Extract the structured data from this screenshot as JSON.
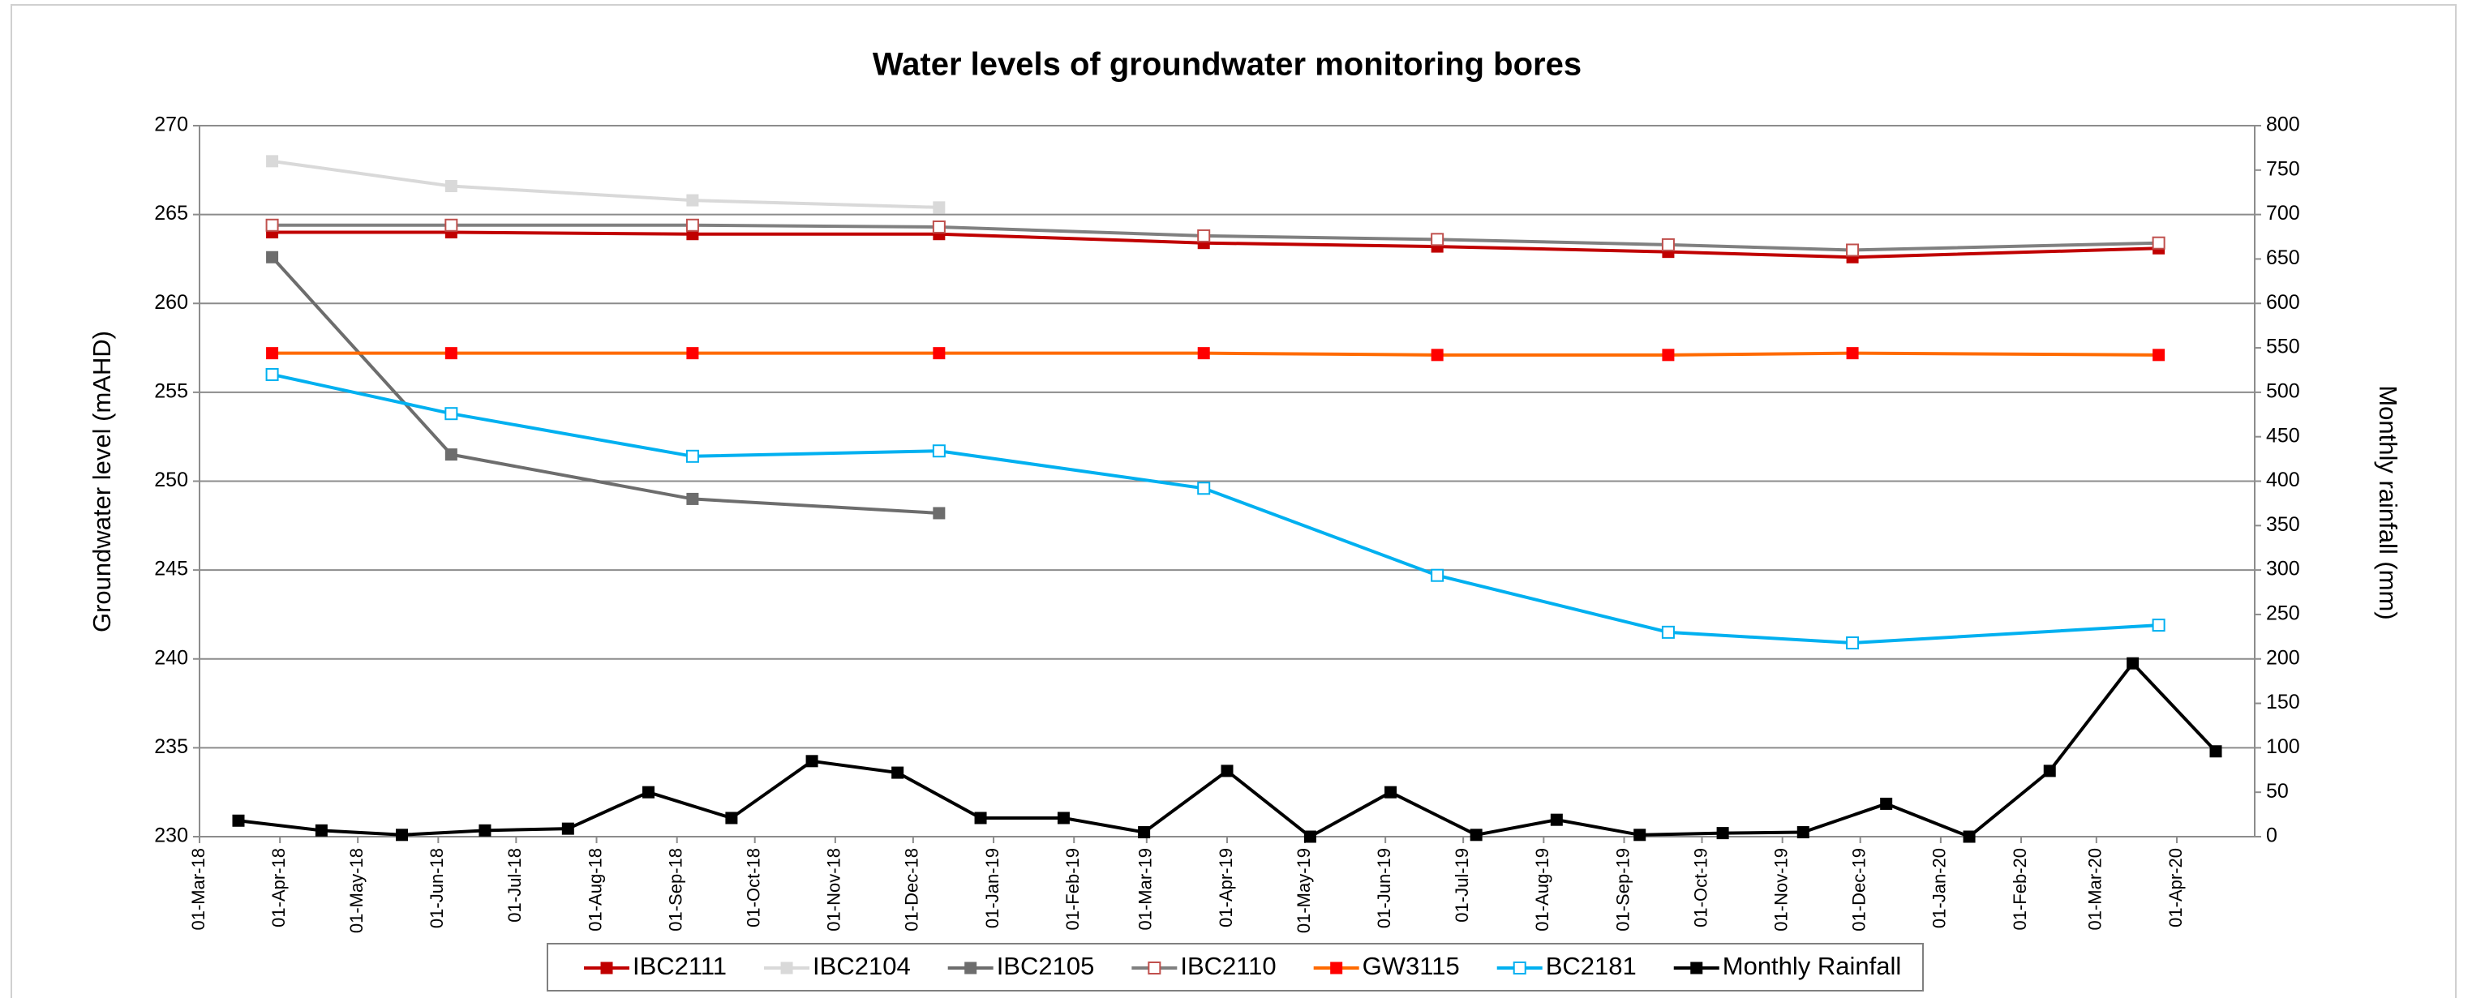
{
  "chart_data": {
    "type": "line",
    "title": "Water levels of groundwater monitoring bores",
    "y_label": "Groundwater level (mAHD)",
    "y2_label": "Monthly rainfall (mm)",
    "xlim": [
      "2018-03-01",
      "2020-05-01"
    ],
    "xticks": [
      {
        "value": "2018-03-01",
        "label": "01-Mar-18"
      },
      {
        "value": "2018-04-01",
        "label": "01-Apr-18"
      },
      {
        "value": "2018-05-01",
        "label": "01-May-18"
      },
      {
        "value": "2018-06-01",
        "label": "01-Jun-18"
      },
      {
        "value": "2018-07-01",
        "label": "01-Jul-18"
      },
      {
        "value": "2018-08-01",
        "label": "01-Aug-18"
      },
      {
        "value": "2018-09-01",
        "label": "01-Sep-18"
      },
      {
        "value": "2018-10-01",
        "label": "01-Oct-18"
      },
      {
        "value": "2018-11-01",
        "label": "01-Nov-18"
      },
      {
        "value": "2018-12-01",
        "label": "01-Dec-18"
      },
      {
        "value": "2019-01-01",
        "label": "01-Jan-19"
      },
      {
        "value": "2019-02-01",
        "label": "01-Feb-19"
      },
      {
        "value": "2019-03-01",
        "label": "01-Mar-19"
      },
      {
        "value": "2019-04-01",
        "label": "01-Apr-19"
      },
      {
        "value": "2019-05-01",
        "label": "01-May-19"
      },
      {
        "value": "2019-06-01",
        "label": "01-Jun-19"
      },
      {
        "value": "2019-07-01",
        "label": "01-Jul-19"
      },
      {
        "value": "2019-08-01",
        "label": "01-Aug-19"
      },
      {
        "value": "2019-09-01",
        "label": "01-Sep-19"
      },
      {
        "value": "2019-10-01",
        "label": "01-Oct-19"
      },
      {
        "value": "2019-11-01",
        "label": "01-Nov-19"
      },
      {
        "value": "2019-12-01",
        "label": "01-Dec-19"
      },
      {
        "value": "2020-01-01",
        "label": "01-Jan-20"
      },
      {
        "value": "2020-02-01",
        "label": "01-Feb-20"
      },
      {
        "value": "2020-03-01",
        "label": "01-Mar-20"
      },
      {
        "value": "2020-04-01",
        "label": "01-Apr-20"
      }
    ],
    "ylim": [
      230,
      270
    ],
    "yticks": [
      230,
      235,
      240,
      245,
      250,
      255,
      260,
      265,
      270
    ],
    "y2lim": [
      0,
      800
    ],
    "y2ticks": [
      0,
      50,
      100,
      150,
      200,
      250,
      300,
      350,
      400,
      450,
      500,
      550,
      600,
      650,
      700,
      750,
      800
    ],
    "grid": true,
    "legend": "bottom",
    "series": [
      {
        "name": "IBC2111",
        "color": "#c00000",
        "marker_color": "#c00000",
        "marker": "filled",
        "x": [
          "2018-03-29",
          "2018-06-06",
          "2018-09-07",
          "2018-12-11",
          "2019-03-23",
          "2019-06-21",
          "2019-09-18",
          "2019-11-28",
          "2020-03-25"
        ],
        "values": [
          264.0,
          264.0,
          263.9,
          263.9,
          263.4,
          263.2,
          262.9,
          262.6,
          263.1
        ]
      },
      {
        "name": "IBC2104",
        "color": "#d9d9d9",
        "marker_color": "#d9d9d9",
        "marker": "filled",
        "x": [
          "2018-03-29",
          "2018-06-06",
          "2018-09-07",
          "2018-12-11"
        ],
        "values": [
          268.0,
          266.6,
          265.8,
          265.4
        ]
      },
      {
        "name": "IBC2105",
        "color": "#6d6d6d",
        "marker_color": "#6d6d6d",
        "marker": "filled",
        "x": [
          "2018-03-29",
          "2018-06-06",
          "2018-09-07",
          "2018-12-11"
        ],
        "values": [
          262.6,
          251.5,
          249.0,
          248.2
        ]
      },
      {
        "name": "IBC2110",
        "color": "#808080",
        "marker_color": "#c0504d",
        "marker": "open",
        "x": [
          "2018-03-29",
          "2018-06-06",
          "2018-09-07",
          "2018-12-11",
          "2019-03-23",
          "2019-06-21",
          "2019-09-18",
          "2019-11-28",
          "2020-03-25"
        ],
        "values": [
          264.4,
          264.4,
          264.4,
          264.3,
          263.8,
          263.6,
          263.3,
          263.0,
          263.4
        ]
      },
      {
        "name": "GW3115",
        "color": "#ff6a00",
        "marker_color": "#ff0000",
        "marker": "filled",
        "x": [
          "2018-03-29",
          "2018-06-06",
          "2018-09-07",
          "2018-12-11",
          "2019-03-23",
          "2019-06-21",
          "2019-09-18",
          "2019-11-28",
          "2020-03-25"
        ],
        "values": [
          257.2,
          257.2,
          257.2,
          257.2,
          257.2,
          257.1,
          257.1,
          257.2,
          257.1
        ]
      },
      {
        "name": "BC2181",
        "color": "#00b0f0",
        "marker_color": "#00b0f0",
        "marker": "open",
        "x": [
          "2018-03-29",
          "2018-06-06",
          "2018-09-07",
          "2018-12-11",
          "2019-03-23",
          "2019-06-21",
          "2019-09-18",
          "2019-11-28",
          "2020-03-25"
        ],
        "values": [
          256.0,
          253.8,
          251.4,
          251.7,
          249.6,
          244.7,
          241.5,
          240.9,
          241.9
        ]
      },
      {
        "name": "Monthly Rainfall",
        "color": "#000000",
        "marker_color": "#000000",
        "marker": "filled",
        "axis": "y2",
        "x": [
          "2018-03-16",
          "2018-04-17",
          "2018-05-18",
          "2018-06-19",
          "2018-07-21",
          "2018-08-21",
          "2018-09-22",
          "2018-10-23",
          "2018-11-25",
          "2018-12-27",
          "2019-01-28",
          "2019-02-28",
          "2019-04-01",
          "2019-05-03",
          "2019-06-03",
          "2019-07-06",
          "2019-08-06",
          "2019-09-07",
          "2019-10-09",
          "2019-11-09",
          "2019-12-11",
          "2020-01-12",
          "2020-02-12",
          "2020-03-15",
          "2020-04-16"
        ],
        "values": [
          18,
          7,
          2,
          7,
          9,
          50,
          21,
          85,
          72,
          21,
          21,
          5,
          74,
          0,
          50,
          2,
          19,
          2,
          4,
          5,
          37,
          0,
          74,
          195,
          96
        ]
      }
    ]
  }
}
